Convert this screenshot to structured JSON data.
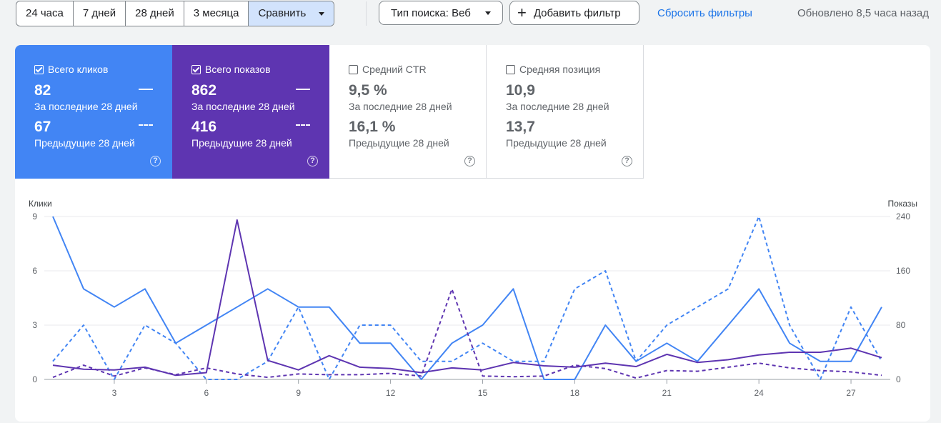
{
  "toolbar": {
    "ranges": [
      "24 часа",
      "7 дней",
      "28 дней",
      "3 месяца"
    ],
    "compare_label": "Сравнить",
    "search_type_label": "Тип поиска: Веб",
    "add_filter_label": "Добавить фильтр",
    "reset_label": "Сбросить фильтры",
    "updated_label": "Обновлено 8,5 часа назад"
  },
  "metrics": [
    {
      "label": "Всего кликов",
      "value": "82",
      "period": "За последние 28 дней",
      "prev_value": "67",
      "prev_period": "Предыдущие 28 дней",
      "checked": true
    },
    {
      "label": "Всего показов",
      "value": "862",
      "period": "За последние 28 дней",
      "prev_value": "416",
      "prev_period": "Предыдущие 28 дней",
      "checked": true
    },
    {
      "label": "Средний CTR",
      "value": "9,5 %",
      "period": "За последние 28 дней",
      "prev_value": "16,1 %",
      "prev_period": "Предыдущие 28 дней",
      "checked": false
    },
    {
      "label": "Средняя позиция",
      "value": "10,9",
      "period": "За последние 28 дней",
      "prev_value": "13,7",
      "prev_period": "Предыдущие 28 дней",
      "checked": false
    }
  ],
  "help_glyph": "?",
  "chart_data": {
    "type": "line",
    "x": [
      1,
      2,
      3,
      4,
      5,
      6,
      7,
      8,
      9,
      10,
      11,
      12,
      13,
      14,
      15,
      16,
      17,
      18,
      19,
      20,
      21,
      22,
      23,
      24,
      25,
      26,
      27,
      28
    ],
    "x_ticks": [
      "3",
      "6",
      "9",
      "12",
      "15",
      "18",
      "21",
      "24",
      "27"
    ],
    "y_left_label": "Клики",
    "y_right_label": "Показы",
    "y_left_ticks": [
      "0",
      "3",
      "6",
      "9"
    ],
    "y_right_ticks": [
      "0",
      "80",
      "160",
      "240"
    ],
    "y_left_range": [
      0,
      9
    ],
    "y_right_range": [
      0,
      240
    ],
    "series": [
      {
        "axis": "left",
        "style": "solid",
        "color": "#4285f4",
        "values": [
          9,
          5,
          4,
          5,
          2,
          3,
          4,
          5,
          4,
          4,
          2,
          2,
          0,
          2,
          3,
          5,
          0,
          0,
          3,
          1,
          2,
          1,
          3,
          5,
          2,
          1,
          1,
          4
        ]
      },
      {
        "axis": "left",
        "style": "dashed",
        "color": "#4285f4",
        "values": [
          1,
          3,
          0,
          3,
          2,
          0,
          0,
          1,
          4,
          0,
          3,
          3,
          1,
          1,
          2,
          1,
          1,
          5,
          6,
          1,
          3,
          4,
          5,
          9,
          3,
          0,
          4,
          1
        ]
      },
      {
        "axis": "right",
        "style": "solid",
        "color": "#5e35b1",
        "values": [
          21,
          15,
          14,
          18,
          6,
          10,
          235,
          28,
          14,
          35,
          18,
          16,
          10,
          17,
          14,
          25,
          20,
          18,
          24,
          19,
          37,
          25,
          29,
          36,
          40,
          40,
          46,
          32
        ]
      },
      {
        "axis": "right",
        "style": "dashed",
        "color": "#5e35b1",
        "values": [
          3,
          21,
          5,
          17,
          7,
          17,
          8,
          3,
          8,
          7,
          7,
          9,
          5,
          133,
          5,
          4,
          5,
          21,
          16,
          2,
          13,
          12,
          18,
          24,
          17,
          13,
          11,
          6
        ]
      }
    ],
    "grid": true,
    "legend": "none"
  }
}
